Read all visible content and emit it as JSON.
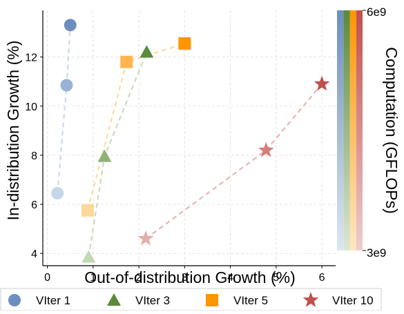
{
  "chart_data": {
    "type": "scatter",
    "title": "",
    "xlabel": "Out-of-distribution Growth (%)",
    "ylabel": "In-distribution Growth (%)",
    "xlim": [
      -0.1,
      6.3
    ],
    "ylim": [
      3.5,
      13.9
    ],
    "xticks": [
      0,
      1,
      2,
      3,
      4,
      5,
      6
    ],
    "yticks": [
      4,
      6,
      8,
      10,
      12
    ],
    "grid": true,
    "legend_position": "bottom",
    "colorbar": {
      "label": "Computation (GFLOPs)",
      "min_label": "3e9",
      "max_label": "6e9"
    },
    "series": [
      {
        "name": "VIter 1",
        "marker": "circle",
        "color": "#6c8ebf",
        "light_color": "#c6d6ea",
        "points": [
          [
            0.22,
            6.45
          ],
          [
            0.42,
            10.85
          ],
          [
            0.5,
            13.3
          ]
        ]
      },
      {
        "name": "VIter 3",
        "marker": "triangle",
        "color": "#5a8a3c",
        "light_color": "#c3d8b6",
        "points": [
          [
            0.9,
            3.85
          ],
          [
            1.25,
            7.95
          ],
          [
            2.17,
            12.2
          ]
        ]
      },
      {
        "name": "VIter 5",
        "marker": "square",
        "color": "#ff9500",
        "light_color": "#ffd79a",
        "points": [
          [
            0.88,
            5.75
          ],
          [
            1.73,
            11.8
          ],
          [
            3.0,
            12.55
          ]
        ]
      },
      {
        "name": "VIter 10",
        "marker": "star",
        "color": "#c0504d",
        "light_color": "#e3aeac",
        "points": [
          [
            2.15,
            4.6
          ],
          [
            4.78,
            8.2
          ],
          [
            6.0,
            10.9
          ]
        ]
      }
    ]
  }
}
